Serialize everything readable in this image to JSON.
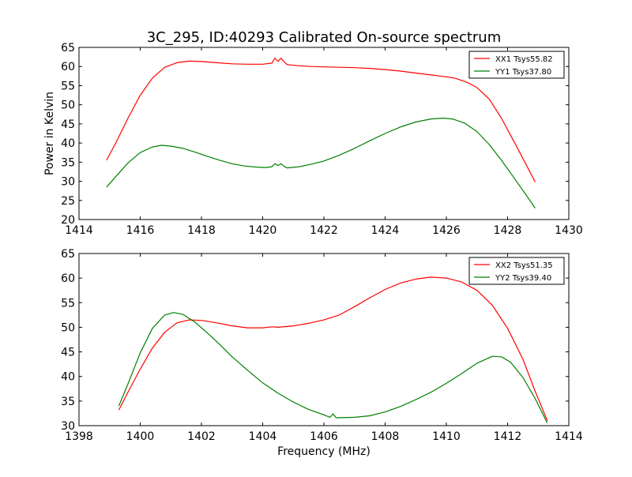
{
  "figure": {
    "title": "3C_295, ID:40293 Calibrated On-source spectrum",
    "xlabel": "Frequency (MHz)",
    "ylabel": "Power in Kelvin"
  },
  "chart_data": [
    {
      "type": "line",
      "title": "3C_295, ID:40293 Calibrated On-source spectrum",
      "ylabel": "Power in Kelvin",
      "xlabel": "",
      "xlim": [
        1414,
        1430
      ],
      "ylim": [
        20,
        65
      ],
      "xticks": [
        1414,
        1416,
        1418,
        1420,
        1422,
        1424,
        1426,
        1428,
        1430
      ],
      "yticks": [
        20,
        25,
        30,
        35,
        40,
        45,
        50,
        55,
        60,
        65
      ],
      "grid": false,
      "legend_position": "top-right",
      "series": [
        {
          "name": "XX1 Tsys55.82",
          "color": "#ff0000",
          "points": [
            [
              1414.9,
              35.5
            ],
            [
              1415.2,
              40.0
            ],
            [
              1415.6,
              46.5
            ],
            [
              1416.0,
              52.5
            ],
            [
              1416.4,
              57.0
            ],
            [
              1416.8,
              59.8
            ],
            [
              1417.2,
              61.0
            ],
            [
              1417.6,
              61.4
            ],
            [
              1418.0,
              61.3
            ],
            [
              1418.5,
              61.0
            ],
            [
              1419.0,
              60.7
            ],
            [
              1419.5,
              60.6
            ],
            [
              1420.0,
              60.6
            ],
            [
              1420.3,
              60.9
            ],
            [
              1420.4,
              62.2
            ],
            [
              1420.5,
              61.3
            ],
            [
              1420.6,
              62.2
            ],
            [
              1420.7,
              61.2
            ],
            [
              1420.8,
              60.5
            ],
            [
              1421.2,
              60.2
            ],
            [
              1421.6,
              60.0
            ],
            [
              1422.0,
              59.9
            ],
            [
              1422.5,
              59.8
            ],
            [
              1423.0,
              59.7
            ],
            [
              1423.5,
              59.5
            ],
            [
              1424.0,
              59.2
            ],
            [
              1424.5,
              58.8
            ],
            [
              1425.0,
              58.3
            ],
            [
              1425.5,
              57.8
            ],
            [
              1426.0,
              57.3
            ],
            [
              1426.3,
              56.9
            ],
            [
              1426.7,
              55.8
            ],
            [
              1427.0,
              54.5
            ],
            [
              1427.4,
              51.5
            ],
            [
              1427.8,
              46.5
            ],
            [
              1428.2,
              40.5
            ],
            [
              1428.6,
              34.5
            ],
            [
              1428.9,
              29.8
            ]
          ]
        },
        {
          "name": "YY1 Tsys37.80",
          "color": "#008000",
          "points": [
            [
              1414.9,
              28.5
            ],
            [
              1415.2,
              31.2
            ],
            [
              1415.6,
              34.8
            ],
            [
              1416.0,
              37.5
            ],
            [
              1416.4,
              39.0
            ],
            [
              1416.7,
              39.4
            ],
            [
              1417.0,
              39.2
            ],
            [
              1417.4,
              38.6
            ],
            [
              1417.8,
              37.6
            ],
            [
              1418.2,
              36.5
            ],
            [
              1418.6,
              35.5
            ],
            [
              1419.0,
              34.6
            ],
            [
              1419.4,
              34.0
            ],
            [
              1419.8,
              33.7
            ],
            [
              1420.1,
              33.6
            ],
            [
              1420.3,
              33.8
            ],
            [
              1420.4,
              34.6
            ],
            [
              1420.5,
              34.1
            ],
            [
              1420.6,
              34.6
            ],
            [
              1420.7,
              33.9
            ],
            [
              1420.8,
              33.5
            ],
            [
              1421.2,
              33.8
            ],
            [
              1421.6,
              34.5
            ],
            [
              1422.0,
              35.3
            ],
            [
              1422.5,
              36.8
            ],
            [
              1423.0,
              38.6
            ],
            [
              1423.5,
              40.6
            ],
            [
              1424.0,
              42.5
            ],
            [
              1424.5,
              44.2
            ],
            [
              1425.0,
              45.5
            ],
            [
              1425.5,
              46.3
            ],
            [
              1425.9,
              46.5
            ],
            [
              1426.2,
              46.3
            ],
            [
              1426.6,
              45.2
            ],
            [
              1427.0,
              43.0
            ],
            [
              1427.4,
              39.6
            ],
            [
              1427.8,
              35.5
            ],
            [
              1428.2,
              31.0
            ],
            [
              1428.6,
              26.5
            ],
            [
              1428.9,
              23.0
            ]
          ]
        }
      ]
    },
    {
      "type": "line",
      "title": "",
      "xlabel": "Frequency (MHz)",
      "ylabel": "",
      "xlim": [
        1398,
        1414
      ],
      "ylim": [
        30,
        65
      ],
      "xticks": [
        1398,
        1400,
        1402,
        1404,
        1406,
        1408,
        1410,
        1412,
        1414
      ],
      "yticks": [
        30,
        35,
        40,
        45,
        50,
        55,
        60,
        65
      ],
      "grid": false,
      "legend_position": "top-right",
      "series": [
        {
          "name": "XX2 Tsys51.35",
          "color": "#ff0000",
          "points": [
            [
              1399.3,
              33.2
            ],
            [
              1399.6,
              36.8
            ],
            [
              1400.0,
              41.5
            ],
            [
              1400.4,
              45.8
            ],
            [
              1400.8,
              49.0
            ],
            [
              1401.2,
              50.9
            ],
            [
              1401.6,
              51.5
            ],
            [
              1402.0,
              51.4
            ],
            [
              1402.5,
              50.9
            ],
            [
              1403.0,
              50.3
            ],
            [
              1403.5,
              49.9
            ],
            [
              1404.0,
              49.9
            ],
            [
              1404.3,
              50.1
            ],
            [
              1404.5,
              50.0
            ],
            [
              1405.0,
              50.3
            ],
            [
              1405.5,
              50.8
            ],
            [
              1406.0,
              51.5
            ],
            [
              1406.5,
              52.5
            ],
            [
              1407.0,
              54.2
            ],
            [
              1407.5,
              56.0
            ],
            [
              1408.0,
              57.7
            ],
            [
              1408.5,
              59.0
            ],
            [
              1409.0,
              59.8
            ],
            [
              1409.5,
              60.2
            ],
            [
              1410.0,
              60.0
            ],
            [
              1410.5,
              59.2
            ],
            [
              1411.0,
              57.5
            ],
            [
              1411.5,
              54.5
            ],
            [
              1412.0,
              49.8
            ],
            [
              1412.5,
              43.5
            ],
            [
              1412.9,
              37.0
            ],
            [
              1413.3,
              31.0
            ]
          ]
        },
        {
          "name": "YY2 Tsys39.40",
          "color": "#008000",
          "points": [
            [
              1399.3,
              34.0
            ],
            [
              1399.6,
              38.5
            ],
            [
              1400.0,
              44.8
            ],
            [
              1400.4,
              49.8
            ],
            [
              1400.8,
              52.5
            ],
            [
              1401.1,
              53.0
            ],
            [
              1401.4,
              52.6
            ],
            [
              1401.8,
              51.0
            ],
            [
              1402.2,
              48.8
            ],
            [
              1402.6,
              46.5
            ],
            [
              1403.0,
              44.0
            ],
            [
              1403.5,
              41.3
            ],
            [
              1404.0,
              38.7
            ],
            [
              1404.5,
              36.6
            ],
            [
              1405.0,
              34.8
            ],
            [
              1405.5,
              33.3
            ],
            [
              1406.0,
              32.2
            ],
            [
              1406.2,
              31.7
            ],
            [
              1406.3,
              32.4
            ],
            [
              1406.4,
              31.6
            ],
            [
              1407.0,
              31.7
            ],
            [
              1407.5,
              32.0
            ],
            [
              1408.0,
              32.8
            ],
            [
              1408.5,
              33.9
            ],
            [
              1409.0,
              35.3
            ],
            [
              1409.5,
              36.8
            ],
            [
              1410.0,
              38.6
            ],
            [
              1410.5,
              40.6
            ],
            [
              1411.0,
              42.7
            ],
            [
              1411.5,
              44.1
            ],
            [
              1411.8,
              44.0
            ],
            [
              1412.1,
              42.9
            ],
            [
              1412.5,
              39.8
            ],
            [
              1412.9,
              35.5
            ],
            [
              1413.3,
              30.5
            ]
          ]
        }
      ]
    }
  ]
}
